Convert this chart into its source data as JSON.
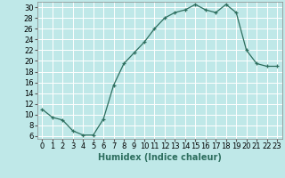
{
  "x": [
    0,
    1,
    2,
    3,
    4,
    5,
    6,
    7,
    8,
    9,
    10,
    11,
    12,
    13,
    14,
    15,
    16,
    17,
    18,
    19,
    20,
    21,
    22,
    23
  ],
  "y": [
    11,
    9.5,
    9,
    7,
    6.2,
    6.2,
    9.2,
    15.5,
    19.5,
    21.5,
    23.5,
    26,
    28,
    29,
    29.5,
    30.5,
    29.5,
    29,
    30.5,
    29,
    22,
    19.5,
    19,
    19
  ],
  "xlabel": "Humidex (Indice chaleur)",
  "xlim": [
    -0.5,
    23.5
  ],
  "ylim": [
    5.5,
    31
  ],
  "yticks": [
    6,
    8,
    10,
    12,
    14,
    16,
    18,
    20,
    22,
    24,
    26,
    28,
    30
  ],
  "xticks": [
    0,
    1,
    2,
    3,
    4,
    5,
    6,
    7,
    8,
    9,
    10,
    11,
    12,
    13,
    14,
    15,
    16,
    17,
    18,
    19,
    20,
    21,
    22,
    23
  ],
  "line_color": "#2d6e5e",
  "marker": "+",
  "bg_color": "#bfe8e8",
  "grid_color": "#ffffff",
  "label_fontsize": 7,
  "tick_fontsize": 6
}
